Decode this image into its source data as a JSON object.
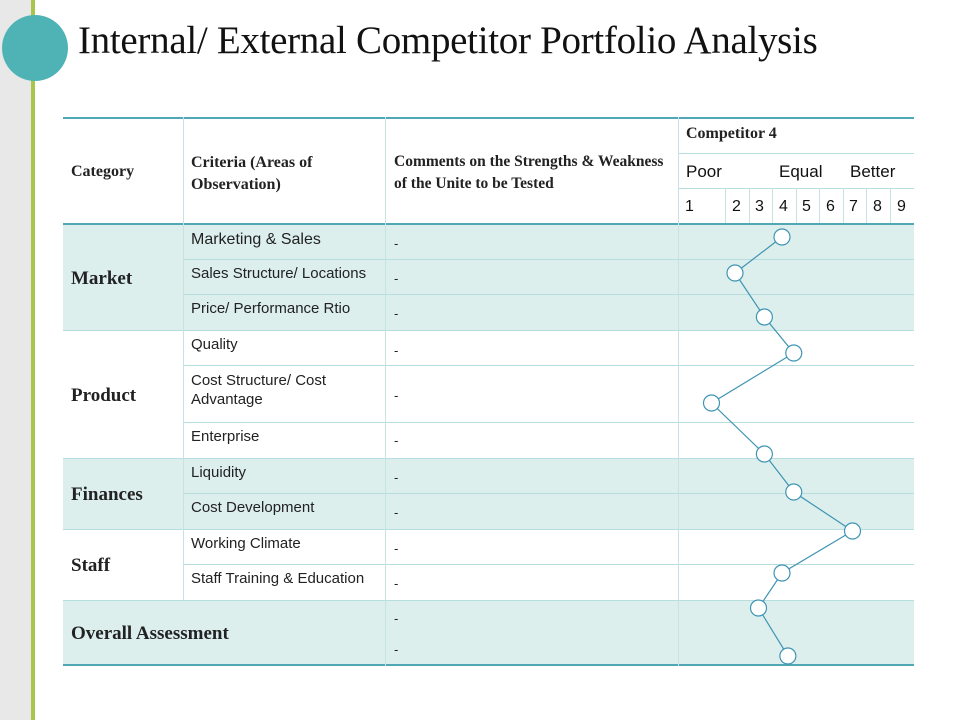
{
  "title": "Internal/ External Competitor Portfolio Analysis",
  "headers": {
    "category": "Category",
    "criteria": "Criteria (Areas of Observation)",
    "comments": "Comments on the Strengths & Weakness of the Unite to be Tested",
    "competitor": "Competitor 4",
    "poor": "Poor",
    "equal": "Equal",
    "better": "Better",
    "scale": [
      "1",
      "2",
      "3",
      "4",
      "5",
      "6",
      "7",
      "8",
      "9"
    ]
  },
  "categories": {
    "market": "Market",
    "product": "Product",
    "finances": "Finances",
    "staff": "Staff",
    "overall": "Overall Assessment"
  },
  "rows": [
    {
      "criteria": "Marketing & Sales",
      "comment": "-"
    },
    {
      "criteria": "Sales Structure/ Locations",
      "comment": "-"
    },
    {
      "criteria": "Price/ Performance Rtio",
      "comment": "-"
    },
    {
      "criteria": "Quality",
      "comment": "-"
    },
    {
      "criteria": "Cost Structure/ Cost Advantage",
      "comment": "-"
    },
    {
      "criteria": "Enterprise",
      "comment": "-"
    },
    {
      "criteria": "Liquidity",
      "comment": "-"
    },
    {
      "criteria": "Cost Development",
      "comment": "-"
    },
    {
      "criteria": "Working Climate",
      "comment": "-"
    },
    {
      "criteria": "Staff Training & Education",
      "comment": "-"
    }
  ],
  "overall_comments": [
    "-",
    "-"
  ],
  "colors": {
    "band": "#dcefed",
    "accent": "#4fa8b4",
    "marker_line": "#3e94b3",
    "deco_circle": "#4fb3b6",
    "strip_line": "#a8c64a"
  },
  "chart_data": {
    "type": "line",
    "series": [
      {
        "values": [
          5.0,
          3.0,
          4.25,
          5.5,
          2.0,
          4.25,
          5.5,
          8.0,
          5.0,
          4.0,
          5.25
        ]
      }
    ],
    "ylim": [
      1,
      9
    ]
  }
}
